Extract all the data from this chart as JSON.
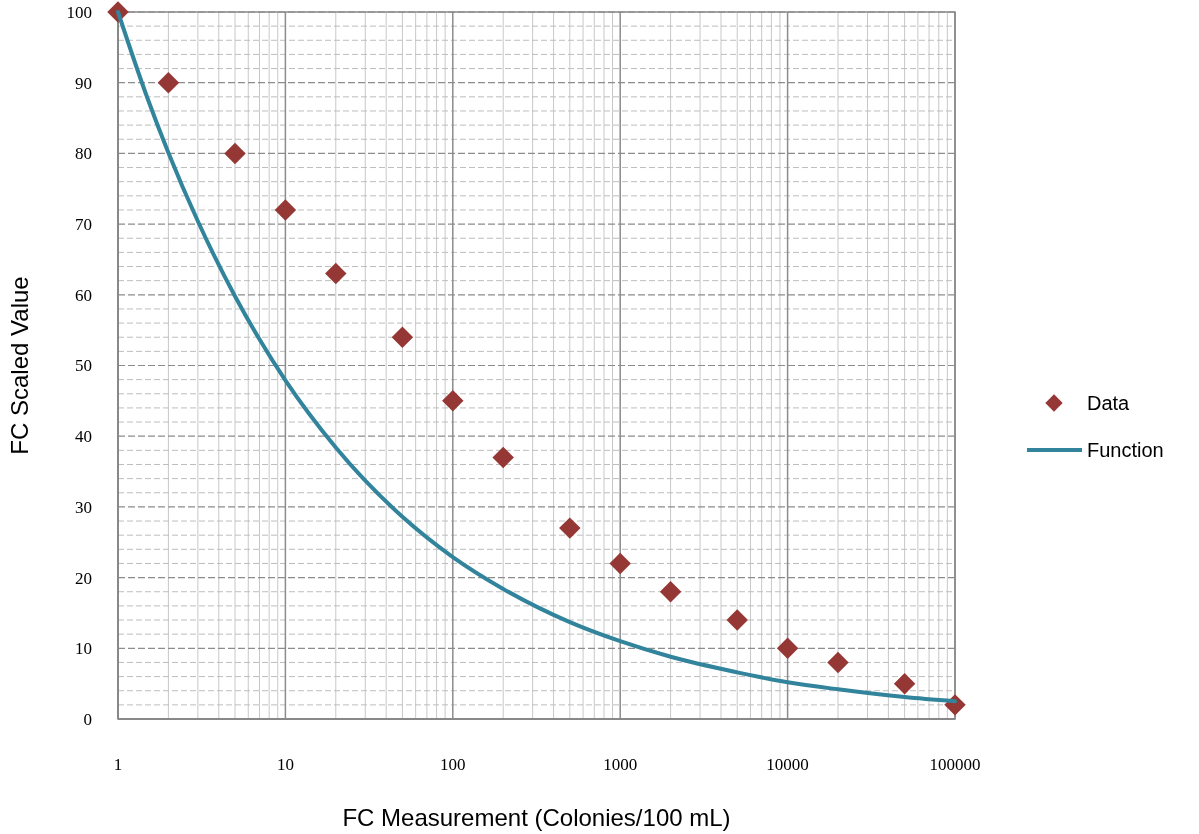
{
  "chart_data": {
    "type": "scatter",
    "xlabel": "FC Measurement (Colonies/100 mL)",
    "ylabel": "FC Scaled Value",
    "log": "x",
    "xlim": [
      1,
      100000
    ],
    "xticks": [
      1,
      10,
      100,
      1000,
      10000,
      100000
    ],
    "ylim": [
      0,
      100
    ],
    "yticks": [
      0,
      10,
      20,
      30,
      40,
      50,
      60,
      70,
      80,
      90,
      100
    ],
    "grid": true,
    "legend": "right",
    "series": [
      {
        "name": "Data",
        "marker": "diamond",
        "color": "#953735",
        "x": [
          1,
          2,
          5,
          10,
          20,
          50,
          100,
          200,
          500,
          1000,
          2000,
          5000,
          10000,
          20000,
          50000,
          100000
        ],
        "values": [
          100,
          90,
          80,
          72,
          63,
          54,
          45,
          37,
          27,
          22,
          18,
          14,
          10,
          8,
          5,
          2
        ]
      },
      {
        "name": "Function",
        "type": "line",
        "marker": "none",
        "line_style": "solid",
        "color": "#31849b",
        "x": [
          1,
          1.5,
          2,
          3,
          5,
          7,
          10,
          20,
          50,
          100,
          200,
          500,
          1000,
          2000,
          5000,
          10000,
          20000,
          50000,
          100000
        ],
        "values": [
          100,
          87.8,
          80.1,
          70.4,
          59.8,
          53.7,
          47.9,
          38.4,
          28.6,
          22.9,
          18.4,
          13.7,
          11.0,
          8.8,
          6.6,
          5.2,
          4.2,
          3.1,
          2.5
        ]
      }
    ]
  }
}
